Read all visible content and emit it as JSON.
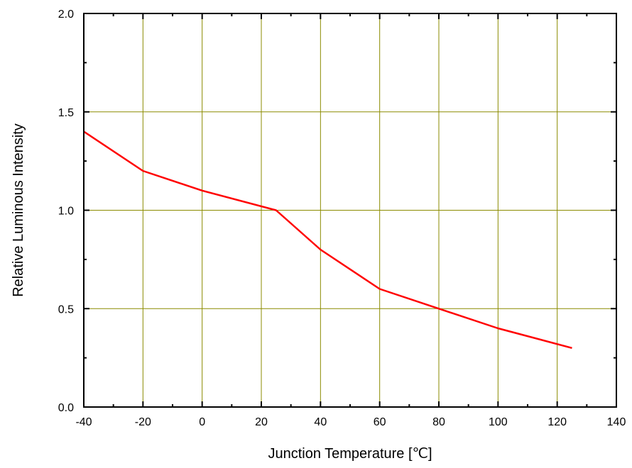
{
  "chart_data": {
    "type": "line",
    "title": "",
    "xlabel": "Junction Temperature [℃]",
    "ylabel": "Relative Luminous Intensity",
    "xlim": [
      -40,
      140
    ],
    "ylim": [
      0.0,
      2.0
    ],
    "x_ticks": [
      "-40",
      "-20",
      "0",
      "20",
      "40",
      "60",
      "80",
      "100",
      "120",
      "140"
    ],
    "y_ticks": [
      "0.0",
      "0.5",
      "1.0",
      "1.5",
      "2.0"
    ],
    "x_tick_values": [
      -40,
      -20,
      0,
      20,
      40,
      60,
      80,
      100,
      120,
      140
    ],
    "y_tick_values": [
      0.0,
      0.5,
      1.0,
      1.5,
      2.0
    ],
    "x_grid": [
      -20,
      0,
      20,
      40,
      60,
      80,
      100,
      120
    ],
    "y_grid": [
      0.5,
      1.0,
      1.5
    ],
    "x_minor_step": 10,
    "y_minor_step": 0.25,
    "grid": true,
    "legend": "none",
    "colors": {
      "series": "#ff0000",
      "grid": "#8b8b00",
      "axis": "#000000"
    },
    "series": [
      {
        "x": [
          -40,
          -20,
          0,
          25,
          40,
          60,
          80,
          100,
          125
        ],
        "y": [
          1.4,
          1.2,
          1.1,
          1.0,
          0.8,
          0.6,
          0.5,
          0.4,
          0.3
        ]
      }
    ]
  }
}
